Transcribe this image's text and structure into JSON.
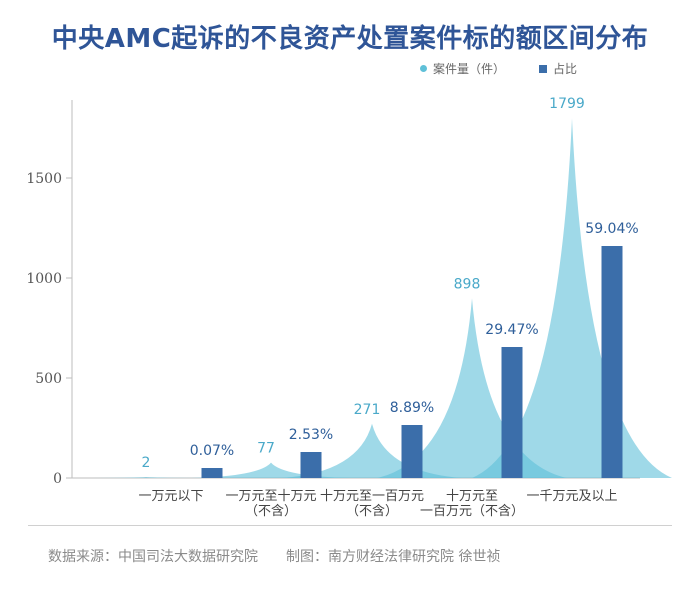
{
  "title": "中央AMC起诉的不良资产处置案件标的额区间分布",
  "legend": {
    "count_label": "案件量（件）",
    "share_label": "占比",
    "count_color": "#5fc0d8",
    "share_color": "#3b6eaa"
  },
  "footer": {
    "source": "数据来源：中国司法大数据研究院",
    "credit": "制图：南方财经法律研究院  徐世祯"
  },
  "chart_data": {
    "type": "bar",
    "title": "中央AMC起诉的不良资产处置案件标的额区间分布",
    "categories": [
      [
        "一万元以下"
      ],
      [
        "一万元至十万元",
        "（不含）"
      ],
      [
        "十万元至一百万元",
        "（不含）"
      ],
      [
        "十万元至",
        "一百万元（不含）"
      ],
      [
        "一千万元及以上"
      ]
    ],
    "ylim": [
      0,
      1900
    ],
    "yticks": [
      0,
      500,
      1000,
      1500
    ],
    "series": [
      {
        "name": "案件量（件）",
        "render": "spike-area",
        "values": [
          2,
          77,
          271,
          898,
          1799
        ],
        "labels": [
          "2",
          "77",
          "271",
          "898",
          "1799"
        ],
        "color": "#5fc0d8"
      },
      {
        "name": "占比",
        "render": "bar",
        "values": [
          0.07,
          2.53,
          8.89,
          29.47,
          59.04
        ],
        "bar_heights": [
          50,
          130,
          265,
          655,
          1160
        ],
        "labels": [
          "0.07%",
          "2.53%",
          "8.89%",
          "29.47%",
          "59.04%"
        ],
        "color": "#3b6eaa"
      }
    ],
    "grid": false,
    "legend_position": "top-right"
  }
}
